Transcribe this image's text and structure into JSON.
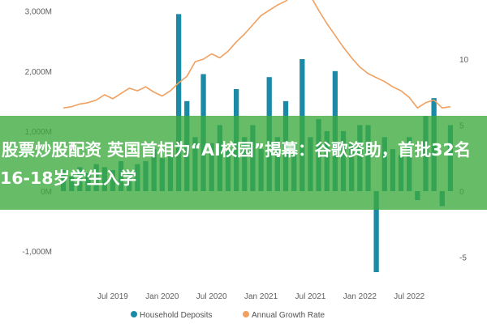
{
  "chart_data": {
    "type": "bar",
    "categories": [
      "2019-01",
      "2019-02",
      "2019-03",
      "2019-04",
      "2019-05",
      "2019-06",
      "2019-07",
      "2019-08",
      "2019-09",
      "2019-10",
      "2019-11",
      "2019-12",
      "2020-01",
      "2020-02",
      "2020-03",
      "2020-04",
      "2020-05",
      "2020-06",
      "2020-07",
      "2020-08",
      "2020-09",
      "2020-10",
      "2020-11",
      "2020-12",
      "2021-01",
      "2021-02",
      "2021-03",
      "2021-04",
      "2021-05",
      "2021-06",
      "2021-07",
      "2021-08",
      "2021-09",
      "2021-10",
      "2021-11",
      "2021-12",
      "2022-01",
      "2022-02",
      "2022-03",
      "2022-04",
      "2022-05",
      "2022-06",
      "2022-07",
      "2022-08",
      "2022-09",
      "2022-10",
      "2022-11",
      "2022-12"
    ],
    "series": [
      {
        "name": "Household Deposits",
        "axis": "left",
        "color": "#1a8aa6",
        "values": [
          350,
          250,
          400,
          300,
          450,
          400,
          350,
          500,
          300,
          450,
          500,
          700,
          550,
          600,
          2950,
          1500,
          900,
          1950,
          800,
          1100,
          700,
          1700,
          900,
          1100,
          700,
          1900,
          900,
          1500,
          800,
          2200,
          900,
          1200,
          1000,
          2000,
          1000,
          800,
          1100,
          1100,
          -1350,
          900,
          700,
          600,
          900,
          -150,
          1250,
          1550,
          -250,
          1100
        ]
      },
      {
        "name": "Annual Growth Rate",
        "axis": "right",
        "color": "#f0a060",
        "values": [
          6.3,
          6.4,
          6.6,
          6.7,
          6.9,
          7.3,
          7.0,
          7.4,
          7.8,
          7.6,
          7.9,
          7.5,
          7.2,
          7.6,
          8.2,
          8.7,
          9.8,
          10.0,
          10.4,
          10.1,
          10.6,
          11.3,
          11.9,
          12.6,
          13.3,
          13.7,
          14.1,
          14.4,
          14.9,
          15.3,
          14.8,
          13.7,
          12.7,
          11.8,
          10.9,
          10.1,
          9.4,
          8.9,
          8.6,
          8.3,
          7.9,
          7.6,
          7.1,
          6.3,
          6.7,
          6.9,
          6.3,
          6.4
        ]
      }
    ],
    "y_left": {
      "ylim": [
        -1500,
        3000
      ],
      "ticks": [
        -1000,
        0,
        1000,
        2000,
        3000
      ],
      "tick_labels": [
        "-1,000M",
        "0M",
        "1,000M",
        "2,000M",
        "3,000M"
      ]
    },
    "y_right": {
      "ylim": [
        -7,
        13.5
      ],
      "ticks": [
        -5,
        0,
        5,
        10
      ],
      "tick_labels": [
        "-5",
        "0",
        "5",
        "10"
      ]
    },
    "x_tick_labels": [
      "Jul 2019",
      "Jan 2020",
      "Jul 2020",
      "Jan 2021",
      "Jul 2021",
      "Jan 2022",
      "Jul 2022"
    ],
    "x_tick_indices": [
      6,
      12,
      18,
      24,
      30,
      36,
      42
    ],
    "legend_position": "bottom",
    "grid": false,
    "title": "",
    "xlabel": "",
    "ylabel": ""
  },
  "overlay": {
    "banner_text": "股票炒股配资 英国首相为“AI校园”揭幕：谷歌资助，首批32名16-18岁学生入学",
    "banner_color": "#3caa3c"
  }
}
